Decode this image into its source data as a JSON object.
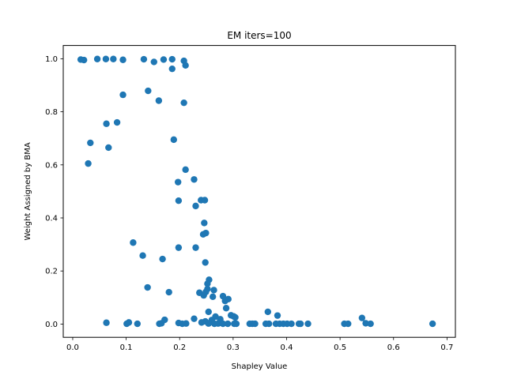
{
  "chart_data": {
    "type": "scatter",
    "title": "EM iters=100",
    "xlabel": "Shapley Value",
    "ylabel": "Weight Assigned by BMA",
    "xlim": [
      -0.0177,
      0.7157
    ],
    "ylim": [
      -0.05,
      1.05
    ],
    "xticks": [
      0.0,
      0.1,
      0.2,
      0.3,
      0.4,
      0.5,
      0.6,
      0.7
    ],
    "xtick_labels": [
      "0.0",
      "0.1",
      "0.2",
      "0.3",
      "0.4",
      "0.5",
      "0.6",
      "0.7"
    ],
    "yticks": [
      0.0,
      0.2,
      0.4,
      0.6,
      0.8,
      1.0
    ],
    "ytick_labels": [
      "0.0",
      "0.2",
      "0.4",
      "0.6",
      "0.8",
      "1.0"
    ],
    "grid": false,
    "marker_color": "#1f77b4",
    "points": [
      {
        "x": 0.015,
        "y": 0.997
      },
      {
        "x": 0.021,
        "y": 0.995
      },
      {
        "x": 0.046,
        "y": 0.999
      },
      {
        "x": 0.062,
        "y": 0.999
      },
      {
        "x": 0.076,
        "y": 0.999
      },
      {
        "x": 0.094,
        "y": 0.996
      },
      {
        "x": 0.133,
        "y": 0.998
      },
      {
        "x": 0.152,
        "y": 0.988
      },
      {
        "x": 0.17,
        "y": 0.997
      },
      {
        "x": 0.186,
        "y": 0.998
      },
      {
        "x": 0.208,
        "y": 0.992
      },
      {
        "x": 0.211,
        "y": 0.975
      },
      {
        "x": 0.186,
        "y": 0.962
      },
      {
        "x": 0.141,
        "y": 0.879
      },
      {
        "x": 0.094,
        "y": 0.864
      },
      {
        "x": 0.161,
        "y": 0.842
      },
      {
        "x": 0.208,
        "y": 0.834
      },
      {
        "x": 0.063,
        "y": 0.755
      },
      {
        "x": 0.083,
        "y": 0.76
      },
      {
        "x": 0.189,
        "y": 0.695
      },
      {
        "x": 0.033,
        "y": 0.683
      },
      {
        "x": 0.067,
        "y": 0.665
      },
      {
        "x": 0.029,
        "y": 0.605
      },
      {
        "x": 0.211,
        "y": 0.582
      },
      {
        "x": 0.227,
        "y": 0.545
      },
      {
        "x": 0.197,
        "y": 0.535
      },
      {
        "x": 0.198,
        "y": 0.465
      },
      {
        "x": 0.24,
        "y": 0.467
      },
      {
        "x": 0.247,
        "y": 0.467
      },
      {
        "x": 0.23,
        "y": 0.445
      },
      {
        "x": 0.246,
        "y": 0.381
      },
      {
        "x": 0.244,
        "y": 0.338
      },
      {
        "x": 0.249,
        "y": 0.343
      },
      {
        "x": 0.113,
        "y": 0.307
      },
      {
        "x": 0.198,
        "y": 0.288
      },
      {
        "x": 0.23,
        "y": 0.288
      },
      {
        "x": 0.131,
        "y": 0.258
      },
      {
        "x": 0.168,
        "y": 0.245
      },
      {
        "x": 0.248,
        "y": 0.232
      },
      {
        "x": 0.255,
        "y": 0.167
      },
      {
        "x": 0.252,
        "y": 0.152
      },
      {
        "x": 0.14,
        "y": 0.138
      },
      {
        "x": 0.252,
        "y": 0.132
      },
      {
        "x": 0.249,
        "y": 0.121
      },
      {
        "x": 0.237,
        "y": 0.118
      },
      {
        "x": 0.264,
        "y": 0.128
      },
      {
        "x": 0.18,
        "y": 0.12
      },
      {
        "x": 0.245,
        "y": 0.108
      },
      {
        "x": 0.262,
        "y": 0.103
      },
      {
        "x": 0.281,
        "y": 0.105
      },
      {
        "x": 0.285,
        "y": 0.087
      },
      {
        "x": 0.291,
        "y": 0.094
      },
      {
        "x": 0.287,
        "y": 0.06
      },
      {
        "x": 0.254,
        "y": 0.046
      },
      {
        "x": 0.365,
        "y": 0.046
      },
      {
        "x": 0.383,
        "y": 0.032
      },
      {
        "x": 0.541,
        "y": 0.023
      },
      {
        "x": 0.296,
        "y": 0.033
      },
      {
        "x": 0.301,
        "y": 0.029
      },
      {
        "x": 0.304,
        "y": 0.025
      },
      {
        "x": 0.267,
        "y": 0.028
      },
      {
        "x": 0.227,
        "y": 0.02
      },
      {
        "x": 0.172,
        "y": 0.016
      },
      {
        "x": 0.276,
        "y": 0.018
      },
      {
        "x": 0.26,
        "y": 0.015
      },
      {
        "x": 0.248,
        "y": 0.01
      },
      {
        "x": 0.241,
        "y": 0.006
      },
      {
        "x": 0.063,
        "y": 0.005
      },
      {
        "x": 0.101,
        "y": 0.001
      },
      {
        "x": 0.105,
        "y": 0.006
      },
      {
        "x": 0.121,
        "y": 0.001
      },
      {
        "x": 0.162,
        "y": 0.001
      },
      {
        "x": 0.166,
        "y": 0.003
      },
      {
        "x": 0.198,
        "y": 0.004
      },
      {
        "x": 0.205,
        "y": 0.001
      },
      {
        "x": 0.212,
        "y": 0.002
      },
      {
        "x": 0.254,
        "y": 0.002
      },
      {
        "x": 0.265,
        "y": 0.001
      },
      {
        "x": 0.272,
        "y": 0.002
      },
      {
        "x": 0.281,
        "y": 0.001
      },
      {
        "x": 0.29,
        "y": 0.001
      },
      {
        "x": 0.302,
        "y": 0.001
      },
      {
        "x": 0.306,
        "y": 0.001
      },
      {
        "x": 0.331,
        "y": 0.001
      },
      {
        "x": 0.336,
        "y": 0.001
      },
      {
        "x": 0.341,
        "y": 0.001
      },
      {
        "x": 0.361,
        "y": 0.001
      },
      {
        "x": 0.367,
        "y": 0.001
      },
      {
        "x": 0.38,
        "y": 0.001
      },
      {
        "x": 0.387,
        "y": 0.001
      },
      {
        "x": 0.394,
        "y": 0.001
      },
      {
        "x": 0.401,
        "y": 0.001
      },
      {
        "x": 0.409,
        "y": 0.001
      },
      {
        "x": 0.423,
        "y": 0.001
      },
      {
        "x": 0.426,
        "y": 0.001
      },
      {
        "x": 0.44,
        "y": 0.001
      },
      {
        "x": 0.508,
        "y": 0.001
      },
      {
        "x": 0.515,
        "y": 0.001
      },
      {
        "x": 0.548,
        "y": 0.003
      },
      {
        "x": 0.557,
        "y": 0.001
      },
      {
        "x": 0.673,
        "y": 0.001
      }
    ]
  }
}
